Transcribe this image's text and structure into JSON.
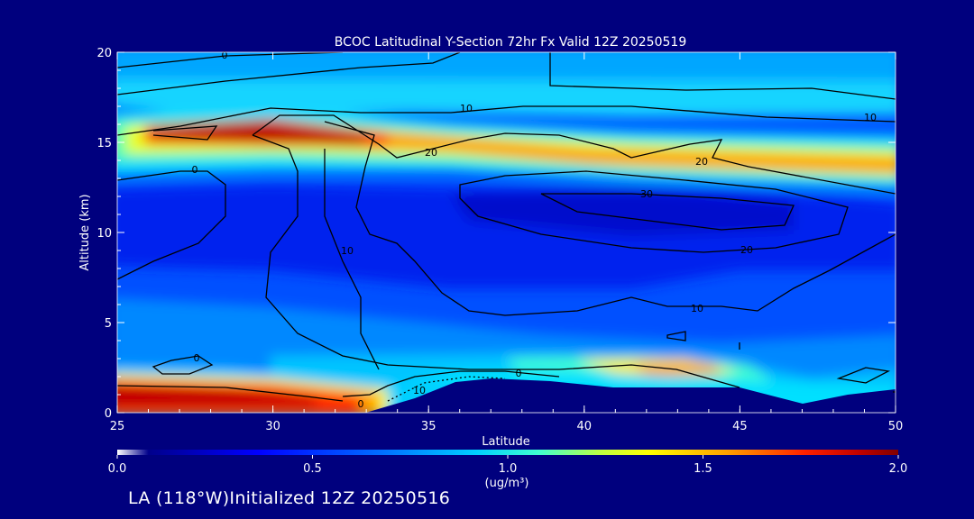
{
  "chart_data": {
    "type": "heatmap",
    "title": "BCOC Latitudinal Y-Section 72hr  Fx Valid 12Z 20250519",
    "xlabel": "Latitude",
    "ylabel": "Altitude (km)",
    "xlim": [
      25,
      50
    ],
    "ylim": [
      0,
      20
    ],
    "x_ticks": [
      "25",
      "30",
      "35",
      "40",
      "45",
      "50"
    ],
    "y_ticks": [
      "0",
      "5",
      "10",
      "15",
      "20"
    ],
    "colorbar": {
      "label": "(ug/m³)",
      "min": 0.0,
      "max": 2.0,
      "tick_labels": [
        "0.0",
        "0.5",
        "1.0",
        "1.5",
        "2.0"
      ],
      "colors": [
        "#ffffff",
        "#00008b",
        "#0000ff",
        "#0060ff",
        "#00c8ff",
        "#40ffd0",
        "#c0ff40",
        "#ffff00",
        "#ffa000",
        "#ff2000",
        "#c00000",
        "#800000"
      ]
    },
    "concentration_features": [
      {
        "description": "upper layer",
        "lat": [
          25,
          50
        ],
        "alt_km": [
          13.2,
          15.5
        ],
        "max": 2.0
      },
      {
        "description": "surface layer",
        "lat": [
          25,
          34
        ],
        "alt_km": [
          0,
          1.3
        ],
        "max": 2.0
      }
    ],
    "contour_labels": [
      "0",
      "10",
      "20",
      "30",
      "20",
      "10",
      "0",
      "20",
      "10",
      "10",
      "0",
      "0",
      "10",
      "0"
    ]
  },
  "footer": "LA (118°W)Initialized 12Z 20250516"
}
